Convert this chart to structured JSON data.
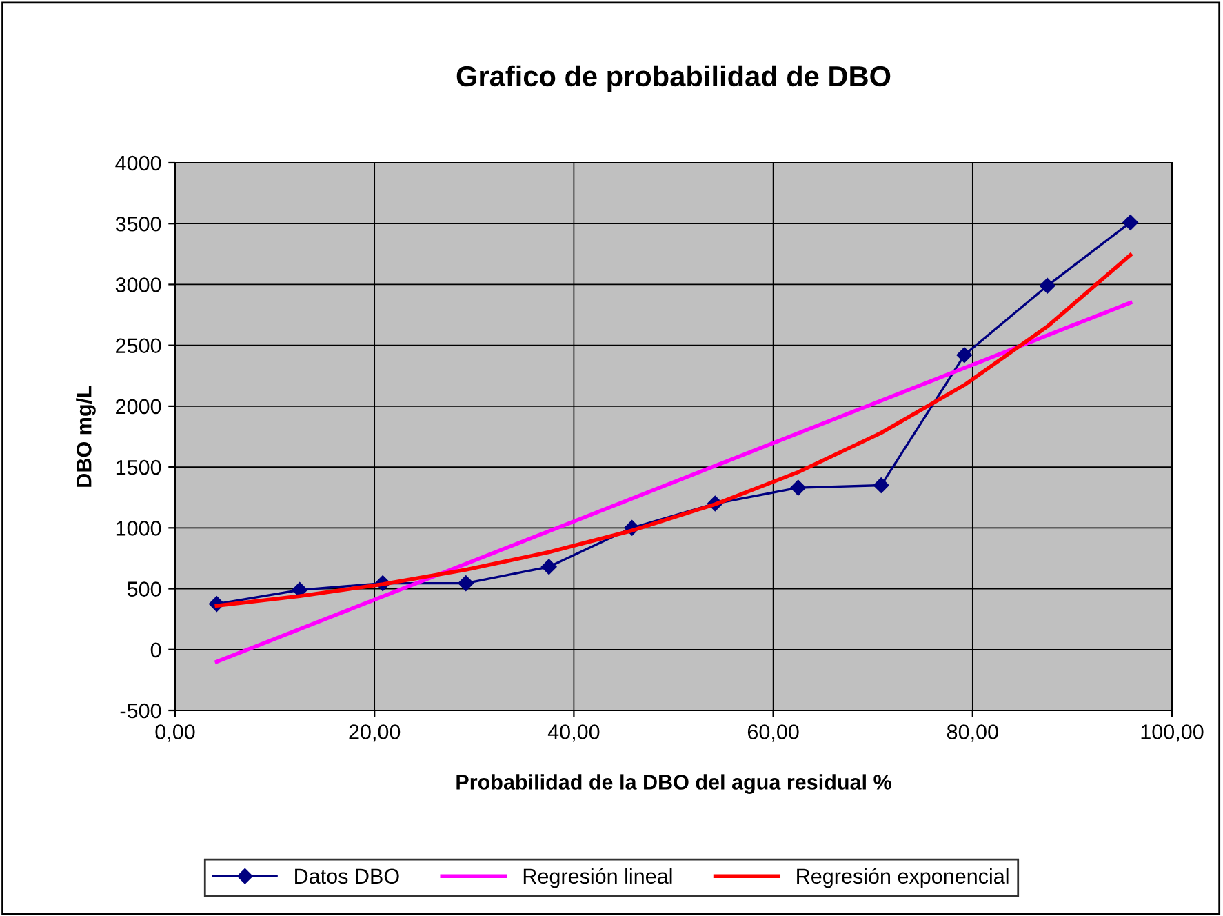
{
  "chart_data": {
    "type": "line",
    "title": "Grafico de probabilidad de DBO",
    "xlabel": "Probabilidad de la DBO del agua residual %",
    "ylabel": "DBO mg/L",
    "xlim": [
      0,
      100
    ],
    "ylim": [
      -500,
      4000
    ],
    "xticks": [
      {
        "value": 0,
        "label": "0,00"
      },
      {
        "value": 20,
        "label": "20,00"
      },
      {
        "value": 40,
        "label": "40,00"
      },
      {
        "value": 60,
        "label": "60,00"
      },
      {
        "value": 80,
        "label": "80,00"
      },
      {
        "value": 100,
        "label": "100,00"
      }
    ],
    "yticks": [
      -500,
      0,
      500,
      1000,
      1500,
      2000,
      2500,
      3000,
      3500,
      4000
    ],
    "grid": true,
    "legend": "bottom",
    "series": [
      {
        "name": "Datos DBO",
        "color": "#000080",
        "marker": "diamond",
        "x": [
          4.17,
          12.5,
          20.83,
          29.17,
          37.5,
          45.83,
          54.17,
          62.5,
          70.83,
          79.17,
          87.5,
          95.83
        ],
        "values": [
          375,
          490,
          545,
          545,
          680,
          1000,
          1200,
          1330,
          1350,
          2420,
          2990,
          3510
        ]
      },
      {
        "name": "Regresión lineal",
        "color": "#ff00ff",
        "marker": "none",
        "x": [
          4.17,
          95.83
        ],
        "values": [
          -100,
          2850
        ]
      },
      {
        "name": "Regresión exponencial",
        "color": "#ff0000",
        "marker": "none",
        "x": [
          4.17,
          12.5,
          20.83,
          29.17,
          37.5,
          45.83,
          54.17,
          62.5,
          70.83,
          79.17,
          87.5,
          95.83
        ],
        "values": [
          360,
          440,
          537,
          656,
          801,
          978,
          1194,
          1458,
          1781,
          2174,
          2655,
          3242
        ]
      }
    ]
  }
}
